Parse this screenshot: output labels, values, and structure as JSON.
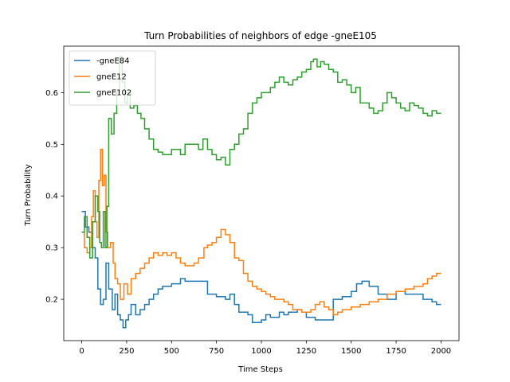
{
  "chart_data": {
    "type": "line",
    "title": "Turn Probabilities of neighbors of edge -gneE105",
    "xlabel": "Time Steps",
    "ylabel": "Turn Probability",
    "xlim": [
      -100,
      2100
    ],
    "ylim": [
      0.12,
      0.69
    ],
    "xticks": [
      0,
      250,
      500,
      750,
      1000,
      1250,
      1500,
      1750,
      2000
    ],
    "yticks": [
      0.2,
      0.3,
      0.4,
      0.5,
      0.6
    ],
    "grid": false,
    "legend_position": "upper-left",
    "series": [
      {
        "name": "-gneE84",
        "color": "#1f77b4",
        "points": [
          [
            0,
            0.37
          ],
          [
            20,
            0.34
          ],
          [
            40,
            0.33
          ],
          [
            60,
            0.3
          ],
          [
            75,
            0.28
          ],
          [
            90,
            0.22
          ],
          [
            105,
            0.19
          ],
          [
            120,
            0.2
          ],
          [
            135,
            0.27
          ],
          [
            150,
            0.22
          ],
          [
            170,
            0.18
          ],
          [
            185,
            0.21
          ],
          [
            200,
            0.17
          ],
          [
            215,
            0.16
          ],
          [
            230,
            0.145
          ],
          [
            245,
            0.16
          ],
          [
            260,
            0.17
          ],
          [
            275,
            0.19
          ],
          [
            300,
            0.17
          ],
          [
            325,
            0.18
          ],
          [
            350,
            0.19
          ],
          [
            375,
            0.2
          ],
          [
            400,
            0.21
          ],
          [
            425,
            0.22
          ],
          [
            450,
            0.225
          ],
          [
            500,
            0.23
          ],
          [
            550,
            0.24
          ],
          [
            575,
            0.235
          ],
          [
            600,
            0.235
          ],
          [
            650,
            0.235
          ],
          [
            700,
            0.21
          ],
          [
            750,
            0.205
          ],
          [
            800,
            0.2
          ],
          [
            825,
            0.21
          ],
          [
            850,
            0.19
          ],
          [
            875,
            0.175
          ],
          [
            900,
            0.175
          ],
          [
            925,
            0.17
          ],
          [
            950,
            0.155
          ],
          [
            1000,
            0.16
          ],
          [
            1025,
            0.17
          ],
          [
            1050,
            0.165
          ],
          [
            1100,
            0.175
          ],
          [
            1125,
            0.17
          ],
          [
            1150,
            0.175
          ],
          [
            1200,
            0.18
          ],
          [
            1225,
            0.175
          ],
          [
            1250,
            0.165
          ],
          [
            1300,
            0.16
          ],
          [
            1350,
            0.16
          ],
          [
            1400,
            0.2
          ],
          [
            1450,
            0.205
          ],
          [
            1500,
            0.215
          ],
          [
            1530,
            0.23
          ],
          [
            1560,
            0.235
          ],
          [
            1600,
            0.225
          ],
          [
            1650,
            0.21
          ],
          [
            1700,
            0.2
          ],
          [
            1750,
            0.215
          ],
          [
            1800,
            0.21
          ],
          [
            1850,
            0.21
          ],
          [
            1900,
            0.2
          ],
          [
            1950,
            0.195
          ],
          [
            1975,
            0.19
          ],
          [
            2000,
            0.19
          ]
        ]
      },
      {
        "name": "gneE12",
        "color": "#ff7f0e",
        "points": [
          [
            0,
            0.33
          ],
          [
            15,
            0.3
          ],
          [
            30,
            0.29
          ],
          [
            45,
            0.3
          ],
          [
            55,
            0.36
          ],
          [
            65,
            0.41
          ],
          [
            75,
            0.35
          ],
          [
            85,
            0.32
          ],
          [
            95,
            0.43
          ],
          [
            105,
            0.49
          ],
          [
            115,
            0.42
          ],
          [
            125,
            0.44
          ],
          [
            135,
            0.33
          ],
          [
            145,
            0.3
          ],
          [
            160,
            0.31
          ],
          [
            175,
            0.27
          ],
          [
            185,
            0.24
          ],
          [
            200,
            0.23
          ],
          [
            215,
            0.2
          ],
          [
            235,
            0.23
          ],
          [
            255,
            0.21
          ],
          [
            275,
            0.24
          ],
          [
            300,
            0.25
          ],
          [
            325,
            0.26
          ],
          [
            350,
            0.27
          ],
          [
            375,
            0.28
          ],
          [
            400,
            0.29
          ],
          [
            425,
            0.285
          ],
          [
            450,
            0.29
          ],
          [
            475,
            0.285
          ],
          [
            500,
            0.29
          ],
          [
            525,
            0.28
          ],
          [
            550,
            0.27
          ],
          [
            575,
            0.265
          ],
          [
            600,
            0.265
          ],
          [
            625,
            0.27
          ],
          [
            650,
            0.28
          ],
          [
            680,
            0.3
          ],
          [
            700,
            0.305
          ],
          [
            725,
            0.31
          ],
          [
            750,
            0.32
          ],
          [
            775,
            0.335
          ],
          [
            800,
            0.325
          ],
          [
            825,
            0.31
          ],
          [
            850,
            0.28
          ],
          [
            875,
            0.275
          ],
          [
            900,
            0.25
          ],
          [
            925,
            0.235
          ],
          [
            950,
            0.225
          ],
          [
            975,
            0.22
          ],
          [
            1000,
            0.215
          ],
          [
            1025,
            0.21
          ],
          [
            1050,
            0.205
          ],
          [
            1075,
            0.2
          ],
          [
            1100,
            0.2
          ],
          [
            1125,
            0.195
          ],
          [
            1150,
            0.19
          ],
          [
            1175,
            0.18
          ],
          [
            1200,
            0.18
          ],
          [
            1225,
            0.175
          ],
          [
            1250,
            0.175
          ],
          [
            1275,
            0.18
          ],
          [
            1300,
            0.19
          ],
          [
            1325,
            0.195
          ],
          [
            1350,
            0.185
          ],
          [
            1375,
            0.18
          ],
          [
            1400,
            0.17
          ],
          [
            1425,
            0.175
          ],
          [
            1450,
            0.18
          ],
          [
            1500,
            0.185
          ],
          [
            1550,
            0.19
          ],
          [
            1600,
            0.195
          ],
          [
            1650,
            0.2
          ],
          [
            1700,
            0.21
          ],
          [
            1750,
            0.215
          ],
          [
            1800,
            0.22
          ],
          [
            1850,
            0.225
          ],
          [
            1900,
            0.23
          ],
          [
            1925,
            0.24
          ],
          [
            1950,
            0.245
          ],
          [
            1975,
            0.25
          ],
          [
            2000,
            0.25
          ]
        ]
      },
      {
        "name": "gneE102",
        "color": "#2ca02c",
        "points": [
          [
            0,
            0.33
          ],
          [
            15,
            0.36
          ],
          [
            30,
            0.32
          ],
          [
            45,
            0.28
          ],
          [
            60,
            0.35
          ],
          [
            75,
            0.4
          ],
          [
            90,
            0.37
          ],
          [
            100,
            0.31
          ],
          [
            110,
            0.3
          ],
          [
            120,
            0.37
          ],
          [
            130,
            0.3
          ],
          [
            140,
            0.38
          ],
          [
            150,
            0.55
          ],
          [
            165,
            0.52
          ],
          [
            180,
            0.56
          ],
          [
            195,
            0.6
          ],
          [
            210,
            0.67
          ],
          [
            225,
            0.62
          ],
          [
            240,
            0.58
          ],
          [
            255,
            0.6
          ],
          [
            270,
            0.57
          ],
          [
            290,
            0.575
          ],
          [
            310,
            0.56
          ],
          [
            330,
            0.55
          ],
          [
            350,
            0.53
          ],
          [
            375,
            0.51
          ],
          [
            400,
            0.49
          ],
          [
            425,
            0.485
          ],
          [
            450,
            0.48
          ],
          [
            475,
            0.48
          ],
          [
            500,
            0.49
          ],
          [
            525,
            0.49
          ],
          [
            550,
            0.48
          ],
          [
            575,
            0.5
          ],
          [
            600,
            0.5
          ],
          [
            625,
            0.5
          ],
          [
            650,
            0.49
          ],
          [
            675,
            0.51
          ],
          [
            700,
            0.49
          ],
          [
            725,
            0.48
          ],
          [
            750,
            0.47
          ],
          [
            775,
            0.475
          ],
          [
            800,
            0.46
          ],
          [
            825,
            0.49
          ],
          [
            850,
            0.5
          ],
          [
            875,
            0.52
          ],
          [
            900,
            0.53
          ],
          [
            925,
            0.56
          ],
          [
            950,
            0.58
          ],
          [
            975,
            0.59
          ],
          [
            1000,
            0.6
          ],
          [
            1025,
            0.6
          ],
          [
            1050,
            0.61
          ],
          [
            1075,
            0.62
          ],
          [
            1100,
            0.63
          ],
          [
            1125,
            0.62
          ],
          [
            1150,
            0.615
          ],
          [
            1175,
            0.625
          ],
          [
            1200,
            0.63
          ],
          [
            1225,
            0.64
          ],
          [
            1250,
            0.645
          ],
          [
            1275,
            0.66
          ],
          [
            1290,
            0.665
          ],
          [
            1310,
            0.65
          ],
          [
            1330,
            0.66
          ],
          [
            1350,
            0.655
          ],
          [
            1375,
            0.645
          ],
          [
            1400,
            0.64
          ],
          [
            1425,
            0.62
          ],
          [
            1450,
            0.625
          ],
          [
            1475,
            0.615
          ],
          [
            1500,
            0.6
          ],
          [
            1525,
            0.61
          ],
          [
            1550,
            0.58
          ],
          [
            1575,
            0.58
          ],
          [
            1600,
            0.57
          ],
          [
            1625,
            0.56
          ],
          [
            1650,
            0.565
          ],
          [
            1675,
            0.58
          ],
          [
            1700,
            0.6
          ],
          [
            1725,
            0.59
          ],
          [
            1750,
            0.58
          ],
          [
            1775,
            0.57
          ],
          [
            1800,
            0.565
          ],
          [
            1825,
            0.58
          ],
          [
            1850,
            0.575
          ],
          [
            1875,
            0.57
          ],
          [
            1900,
            0.56
          ],
          [
            1925,
            0.555
          ],
          [
            1950,
            0.565
          ],
          [
            1975,
            0.56
          ],
          [
            2000,
            0.56
          ]
        ]
      }
    ]
  }
}
